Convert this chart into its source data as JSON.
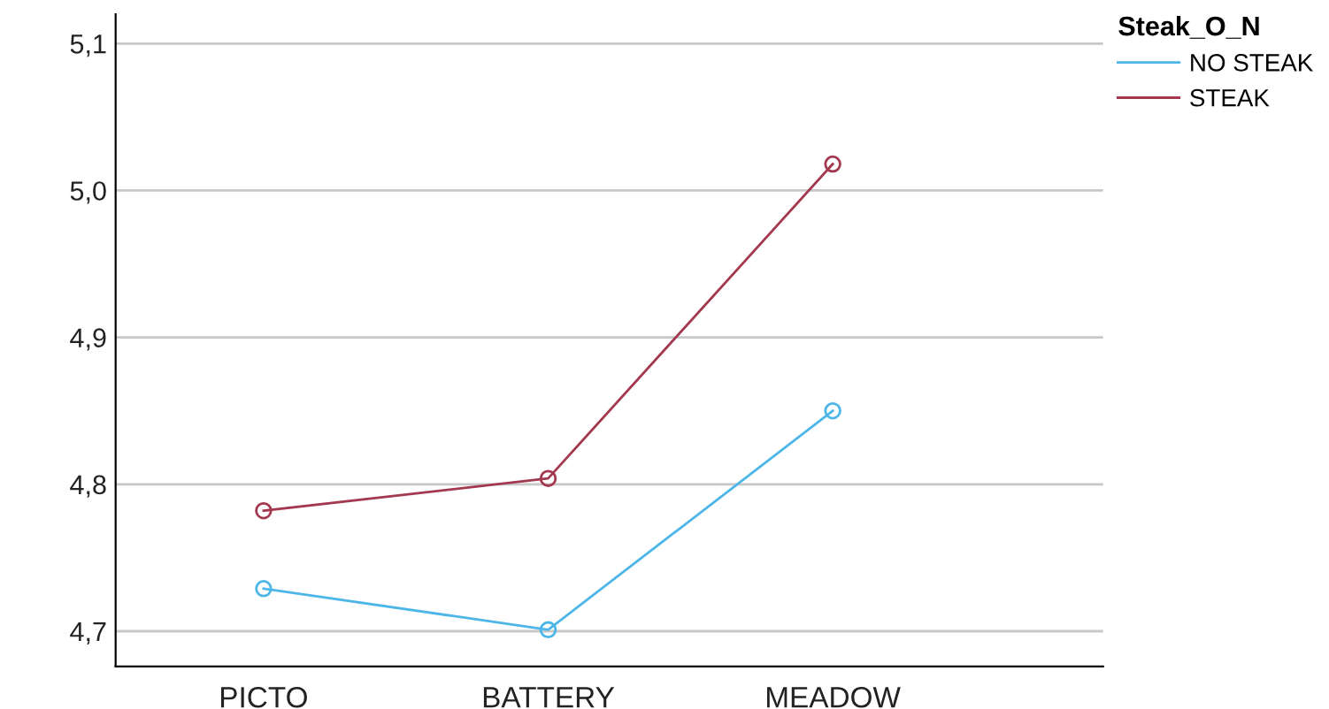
{
  "chart_data": {
    "type": "line",
    "categories": [
      "PICTO",
      "BATTERY",
      "MEADOW"
    ],
    "series": [
      {
        "name": "NO STEAK",
        "color": "#4db6e8",
        "values": [
          4.729,
          4.701,
          4.85
        ]
      },
      {
        "name": "STEAK",
        "color": "#a3384f",
        "values": [
          4.782,
          4.804,
          5.018
        ]
      }
    ],
    "legend_title": "Steak_O_N",
    "legend": "right",
    "marker": "circle",
    "grid": "y",
    "ylim": [
      4.676,
      5.12
    ],
    "yticks": [
      {
        "value": 4.7,
        "label": "4,7"
      },
      {
        "value": 4.8,
        "label": "4,8"
      },
      {
        "value": 4.9,
        "label": "4,9"
      },
      {
        "value": 5.0,
        "label": "5,0"
      },
      {
        "value": 5.1,
        "label": "5,1"
      }
    ]
  }
}
